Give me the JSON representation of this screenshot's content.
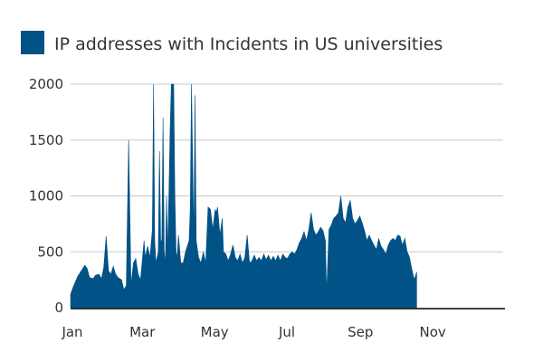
{
  "chart_data": {
    "type": "area",
    "title": "",
    "xlabel": "",
    "ylabel": "",
    "xlim": [
      0,
      365
    ],
    "ylim": [
      0,
      2000
    ],
    "grid": true,
    "legend_position": "top-left",
    "color": "#005287",
    "x_ticks": [
      {
        "label": "Jan",
        "day": 0
      },
      {
        "label": "Mar",
        "day": 59
      },
      {
        "label": "May",
        "day": 120
      },
      {
        "label": "Jul",
        "day": 181
      },
      {
        "label": "Sep",
        "day": 243
      },
      {
        "label": "Nov",
        "day": 304
      }
    ],
    "y_ticks": [
      0,
      500,
      1000,
      1500,
      2000
    ],
    "series": [
      {
        "name": "IP addresses with Incidents in US universities",
        "values": [
          [
            0,
            120
          ],
          [
            2,
            180
          ],
          [
            4,
            230
          ],
          [
            6,
            280
          ],
          [
            9,
            330
          ],
          [
            12,
            380
          ],
          [
            14,
            350
          ],
          [
            16,
            270
          ],
          [
            19,
            260
          ],
          [
            21,
            290
          ],
          [
            24,
            300
          ],
          [
            26,
            260
          ],
          [
            28,
            360
          ],
          [
            30,
            640
          ],
          [
            32,
            330
          ],
          [
            34,
            300
          ],
          [
            36,
            370
          ],
          [
            38,
            300
          ],
          [
            40,
            270
          ],
          [
            43,
            250
          ],
          [
            45,
            160
          ],
          [
            47,
            200
          ],
          [
            49,
            1500
          ],
          [
            51,
            200
          ],
          [
            53,
            400
          ],
          [
            55,
            440
          ],
          [
            57,
            300
          ],
          [
            59,
            250
          ],
          [
            62,
            600
          ],
          [
            63,
            450
          ],
          [
            65,
            550
          ],
          [
            67,
            450
          ],
          [
            69,
            700
          ],
          [
            70,
            2000
          ],
          [
            71,
            600
          ],
          [
            72,
            400
          ],
          [
            74,
            500
          ],
          [
            75,
            1400
          ],
          [
            76,
            600
          ],
          [
            77,
            600
          ],
          [
            78,
            1700
          ],
          [
            79,
            500
          ],
          [
            80,
            400
          ],
          [
            81,
            1000
          ],
          [
            82,
            500
          ],
          [
            84,
            1600
          ],
          [
            85,
            2000
          ],
          [
            86,
            2000
          ],
          [
            87,
            2000
          ],
          [
            88,
            1000
          ],
          [
            89,
            500
          ],
          [
            90,
            450
          ],
          [
            91,
            650
          ],
          [
            93,
            400
          ],
          [
            95,
            400
          ],
          [
            97,
            500
          ],
          [
            100,
            600
          ],
          [
            101,
            900
          ],
          [
            102,
            2000
          ],
          [
            103,
            1300
          ],
          [
            104,
            600
          ],
          [
            105,
            1900
          ],
          [
            106,
            600
          ],
          [
            108,
            450
          ],
          [
            110,
            400
          ],
          [
            112,
            500
          ],
          [
            114,
            400
          ],
          [
            116,
            900
          ],
          [
            118,
            880
          ],
          [
            120,
            700
          ],
          [
            122,
            880
          ],
          [
            123,
            850
          ],
          [
            124,
            900
          ],
          [
            126,
            650
          ],
          [
            128,
            800
          ],
          [
            129,
            500
          ],
          [
            131,
            480
          ],
          [
            133,
            420
          ],
          [
            135,
            480
          ],
          [
            137,
            560
          ],
          [
            139,
            450
          ],
          [
            141,
            420
          ],
          [
            143,
            480
          ],
          [
            145,
            400
          ],
          [
            147,
            450
          ],
          [
            149,
            650
          ],
          [
            151,
            400
          ],
          [
            153,
            420
          ],
          [
            155,
            470
          ],
          [
            157,
            420
          ],
          [
            159,
            450
          ],
          [
            161,
            420
          ],
          [
            163,
            480
          ],
          [
            165,
            430
          ],
          [
            167,
            470
          ],
          [
            169,
            420
          ],
          [
            171,
            460
          ],
          [
            173,
            420
          ],
          [
            175,
            470
          ],
          [
            177,
            420
          ],
          [
            179,
            480
          ],
          [
            181,
            450
          ],
          [
            183,
            440
          ],
          [
            185,
            480
          ],
          [
            187,
            500
          ],
          [
            189,
            480
          ],
          [
            191,
            520
          ],
          [
            193,
            580
          ],
          [
            195,
            620
          ],
          [
            197,
            680
          ],
          [
            199,
            600
          ],
          [
            201,
            700
          ],
          [
            203,
            850
          ],
          [
            205,
            700
          ],
          [
            207,
            650
          ],
          [
            209,
            680
          ],
          [
            211,
            720
          ],
          [
            213,
            690
          ],
          [
            215,
            600
          ],
          [
            216,
            120
          ],
          [
            218,
            700
          ],
          [
            220,
            740
          ],
          [
            222,
            800
          ],
          [
            224,
            820
          ],
          [
            226,
            850
          ],
          [
            228,
            1000
          ],
          [
            230,
            800
          ],
          [
            232,
            760
          ],
          [
            234,
            900
          ],
          [
            236,
            960
          ],
          [
            238,
            800
          ],
          [
            240,
            750
          ],
          [
            242,
            780
          ],
          [
            244,
            820
          ],
          [
            246,
            760
          ],
          [
            248,
            690
          ],
          [
            250,
            600
          ],
          [
            252,
            650
          ],
          [
            254,
            600
          ],
          [
            256,
            560
          ],
          [
            258,
            520
          ],
          [
            260,
            620
          ],
          [
            262,
            550
          ],
          [
            264,
            520
          ],
          [
            266,
            480
          ],
          [
            268,
            560
          ],
          [
            270,
            600
          ],
          [
            272,
            620
          ],
          [
            274,
            600
          ],
          [
            276,
            650
          ],
          [
            278,
            640
          ],
          [
            280,
            560
          ],
          [
            282,
            620
          ],
          [
            284,
            500
          ],
          [
            286,
            450
          ],
          [
            288,
            340
          ],
          [
            290,
            250
          ],
          [
            292,
            320
          ]
        ]
      }
    ]
  }
}
